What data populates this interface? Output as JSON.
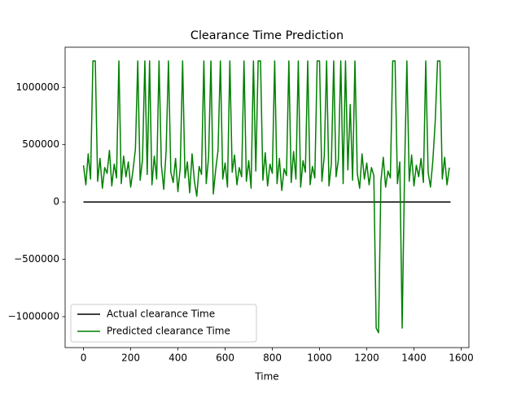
{
  "chart_data": {
    "type": "line",
    "title": "Clearance Time Prediction",
    "xlabel": "Time",
    "xlim": [
      -77.75,
      1632.75
    ],
    "xticks": [
      0,
      200,
      400,
      600,
      800,
      1000,
      1200,
      1400,
      1600
    ],
    "ylim": [
      -1270000,
      1350000
    ],
    "yticks": [
      {
        "value": -1000000,
        "label": "−1000000"
      },
      {
        "value": -500000,
        "label": "−500000"
      },
      0,
      500000,
      1000000
    ],
    "legend": "lower left",
    "series": [
      {
        "name": "Actual clearance Time",
        "color": "#000000",
        "x": [
          0,
          1555
        ],
        "values": [
          0,
          0
        ]
      },
      {
        "name": "Predicted clearance Time",
        "color": "#008000",
        "x": [
          0,
          10,
          20,
          30,
          40,
          50,
          60,
          70,
          80,
          90,
          100,
          110,
          120,
          130,
          140,
          150,
          160,
          170,
          180,
          190,
          200,
          210,
          220,
          230,
          240,
          250,
          260,
          270,
          280,
          290,
          300,
          310,
          320,
          330,
          340,
          350,
          360,
          370,
          380,
          390,
          400,
          410,
          420,
          430,
          440,
          450,
          460,
          470,
          480,
          490,
          500,
          510,
          520,
          530,
          540,
          550,
          560,
          570,
          580,
          590,
          600,
          610,
          620,
          630,
          640,
          650,
          660,
          670,
          680,
          690,
          700,
          710,
          720,
          730,
          740,
          750,
          760,
          770,
          780,
          790,
          800,
          810,
          820,
          830,
          840,
          850,
          860,
          870,
          880,
          890,
          900,
          910,
          920,
          930,
          940,
          950,
          960,
          970,
          980,
          990,
          1000,
          1010,
          1020,
          1030,
          1040,
          1050,
          1060,
          1070,
          1080,
          1090,
          1100,
          1110,
          1120,
          1130,
          1140,
          1150,
          1160,
          1170,
          1180,
          1190,
          1200,
          1210,
          1220,
          1230,
          1240,
          1250,
          1260,
          1270,
          1280,
          1290,
          1300,
          1310,
          1320,
          1330,
          1340,
          1350,
          1360,
          1370,
          1380,
          1390,
          1400,
          1410,
          1420,
          1430,
          1440,
          1450,
          1460,
          1470,
          1480,
          1490,
          1500,
          1510,
          1520,
          1530,
          1540,
          1550
        ],
        "values": [
          320000,
          150000,
          420000,
          200000,
          1230000,
          1230000,
          180000,
          380000,
          120000,
          300000,
          250000,
          450000,
          140000,
          330000,
          210000,
          1230000,
          160000,
          400000,
          220000,
          350000,
          130000,
          280000,
          460000,
          1230000,
          190000,
          370000,
          1230000,
          240000,
          1230000,
          150000,
          400000,
          200000,
          1230000,
          320000,
          110000,
          440000,
          1230000,
          260000,
          170000,
          380000,
          90000,
          300000,
          1230000,
          210000,
          350000,
          80000,
          420000,
          180000,
          50000,
          310000,
          240000,
          1230000,
          160000,
          390000,
          1230000,
          70000,
          280000,
          450000,
          1230000,
          200000,
          340000,
          130000,
          1230000,
          260000,
          410000,
          150000,
          300000,
          220000,
          1230000,
          180000,
          360000,
          120000,
          1230000,
          270000,
          1230000,
          1230000,
          190000,
          430000,
          140000,
          330000,
          250000,
          1230000,
          160000,
          380000,
          100000,
          290000,
          230000,
          1230000,
          170000,
          440000,
          200000,
          1230000,
          130000,
          360000,
          260000,
          1230000,
          150000,
          310000,
          210000,
          1230000,
          1230000,
          180000,
          400000,
          1230000,
          140000,
          330000,
          1230000,
          220000,
          370000,
          1230000,
          160000,
          1230000,
          280000,
          850000,
          190000,
          1230000,
          250000,
          120000,
          420000,
          200000,
          340000,
          150000,
          300000,
          230000,
          -1100000,
          -1140000,
          180000,
          390000,
          130000,
          270000,
          210000,
          1230000,
          1230000,
          160000,
          350000,
          -1100000,
          240000,
          1230000,
          180000,
          410000,
          140000,
          320000,
          220000,
          380000,
          170000,
          1230000,
          260000,
          130000,
          360000,
          700000,
          1230000,
          1230000,
          200000,
          390000,
          150000,
          300000
        ]
      }
    ]
  }
}
